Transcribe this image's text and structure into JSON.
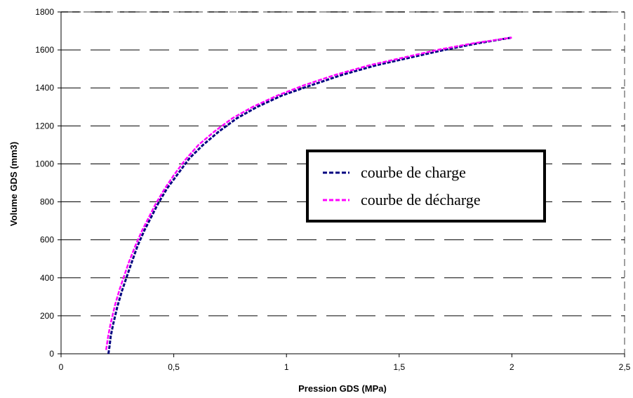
{
  "chart_data": {
    "type": "line",
    "title": "",
    "xlabel": "Pression GDS (MPa)",
    "ylabel": "Volume GDS (mm3)",
    "xlim": [
      0,
      2.5
    ],
    "ylim": [
      0,
      1800
    ],
    "xticks": [
      0,
      0.5,
      1,
      1.5,
      2,
      2.5
    ],
    "xtick_labels": [
      "0",
      "0,5",
      "1",
      "1,5",
      "2",
      "2,5"
    ],
    "yticks": [
      0,
      200,
      400,
      600,
      800,
      1000,
      1200,
      1400,
      1600,
      1800
    ],
    "ytick_labels": [
      "0",
      "200",
      "400",
      "600",
      "800",
      "1000",
      "1200",
      "1400",
      "1600",
      "1800"
    ],
    "grid": "horizontal dashed",
    "legend_position": "center-right",
    "series": [
      {
        "name": "courbe de charge",
        "color": "#000080",
        "style": "dashed",
        "x": [
          0.21,
          0.215,
          0.22,
          0.23,
          0.24,
          0.25,
          0.27,
          0.29,
          0.31,
          0.34,
          0.37,
          0.4,
          0.43,
          0.47,
          0.52,
          0.57,
          0.63,
          0.7,
          0.78,
          0.87,
          0.98,
          1.1,
          1.25,
          1.4,
          1.55,
          1.7,
          1.85,
          2.0
        ],
        "y": [
          0,
          40,
          90,
          150,
          200,
          250,
          330,
          400,
          470,
          570,
          650,
          720,
          790,
          870,
          950,
          1030,
          1100,
          1170,
          1240,
          1300,
          1360,
          1410,
          1470,
          1520,
          1560,
          1600,
          1635,
          1665
        ]
      },
      {
        "name": "courbe de décharge",
        "color": "#ff00ff",
        "style": "dashed",
        "x": [
          0.2,
          0.205,
          0.21,
          0.22,
          0.23,
          0.24,
          0.26,
          0.28,
          0.3,
          0.33,
          0.36,
          0.39,
          0.42,
          0.46,
          0.5,
          0.55,
          0.61,
          0.68,
          0.76,
          0.85,
          0.96,
          1.08,
          1.22,
          1.37,
          1.52,
          1.67,
          1.83,
          2.0
        ],
        "y": [
          20,
          60,
          100,
          160,
          210,
          260,
          340,
          410,
          480,
          570,
          650,
          720,
          790,
          870,
          940,
          1020,
          1100,
          1170,
          1240,
          1300,
          1360,
          1415,
          1470,
          1520,
          1560,
          1600,
          1635,
          1665
        ]
      }
    ]
  }
}
